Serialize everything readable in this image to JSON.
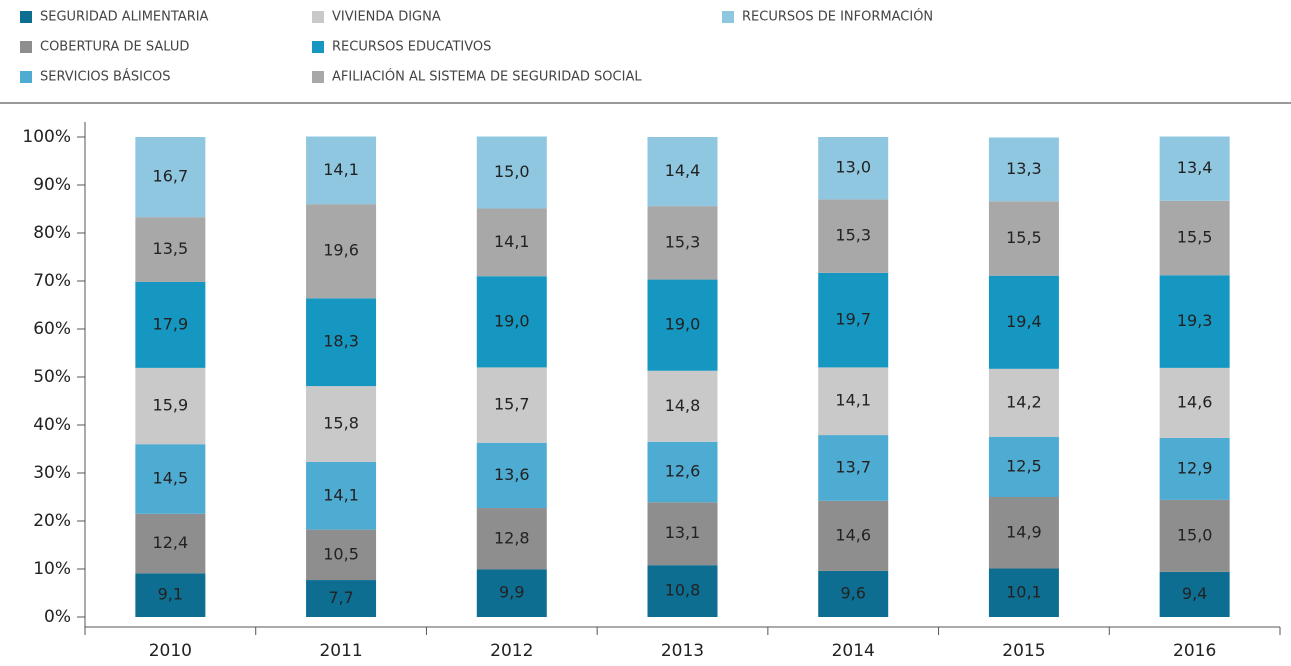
{
  "chart_data": {
    "type": "stacked_bar",
    "categories": [
      "2010",
      "2011",
      "2012",
      "2013",
      "2014",
      "2015",
      "2016"
    ],
    "series": [
      {
        "name": "SEGURIDAD ALIMENTARIA",
        "color": "#0e6e92",
        "values": [
          9.1,
          7.7,
          9.9,
          10.8,
          9.6,
          10.1,
          9.4
        ],
        "value_labels": [
          "9,1",
          "7,7",
          "9,9",
          "10,8",
          "9,6",
          "10,1",
          "9,4"
        ]
      },
      {
        "name": "COBERTURA DE SALUD",
        "color": "#8e8e8e",
        "values": [
          12.4,
          10.5,
          12.8,
          13.1,
          14.6,
          14.9,
          15.0
        ],
        "value_labels": [
          "12,4",
          "10,5",
          "12,8",
          "13,1",
          "14,6",
          "14,9",
          "15,0"
        ]
      },
      {
        "name": "SERVICIOS BÁSICOS",
        "color": "#4eabd2",
        "values": [
          14.5,
          14.1,
          13.6,
          12.6,
          13.7,
          12.5,
          12.9
        ],
        "value_labels": [
          "14,5",
          "14,1",
          "13,6",
          "12,6",
          "13,7",
          "12,5",
          "12,9"
        ]
      },
      {
        "name": "VIVIENDA DIGNA",
        "color": "#c9c9c9",
        "values": [
          15.9,
          15.8,
          15.7,
          14.8,
          14.1,
          14.2,
          14.6
        ],
        "value_labels": [
          "15,9",
          "15,8",
          "15,7",
          "14,8",
          "14,1",
          "14,2",
          "14,6"
        ]
      },
      {
        "name": "RECURSOS EDUCATIVOS",
        "color": "#1597c1",
        "values": [
          17.9,
          18.3,
          19.0,
          19.0,
          19.7,
          19.4,
          19.3
        ],
        "value_labels": [
          "17,9",
          "18,3",
          "19,0",
          "19,0",
          "19,7",
          "19,4",
          "19,3"
        ]
      },
      {
        "name": "AFILIACIÓN AL SISTEMA DE SEGURIDAD SOCIAL",
        "color": "#a8a8a8",
        "values": [
          13.5,
          19.6,
          14.1,
          15.3,
          15.3,
          15.5,
          15.5
        ],
        "value_labels": [
          "13,5",
          "19,6",
          "14,1",
          "15,3",
          "15,3",
          "15,5",
          "15,5"
        ]
      },
      {
        "name": "RECURSOS DE INFORMACIÓN",
        "color": "#8fc7e0",
        "values": [
          16.7,
          14.1,
          15.0,
          14.4,
          13.0,
          13.3,
          13.4
        ],
        "value_labels": [
          "16,7",
          "14,1",
          "15,0",
          "14,4",
          "13,0",
          "13,3",
          "13,4"
        ]
      }
    ],
    "ylim": [
      0,
      100
    ],
    "yticks": [
      {
        "value": 0,
        "label": "0%"
      },
      {
        "value": 10,
        "label": "10%"
      },
      {
        "value": 20,
        "label": "20%"
      },
      {
        "value": 30,
        "label": "30%"
      },
      {
        "value": 40,
        "label": "40%"
      },
      {
        "value": 50,
        "label": "50%"
      },
      {
        "value": 60,
        "label": "60%"
      },
      {
        "value": 70,
        "label": "70%"
      },
      {
        "value": 80,
        "label": "80%"
      },
      {
        "value": 90,
        "label": "90%"
      },
      {
        "value": 100,
        "label": "100%"
      }
    ],
    "legend": "top"
  }
}
